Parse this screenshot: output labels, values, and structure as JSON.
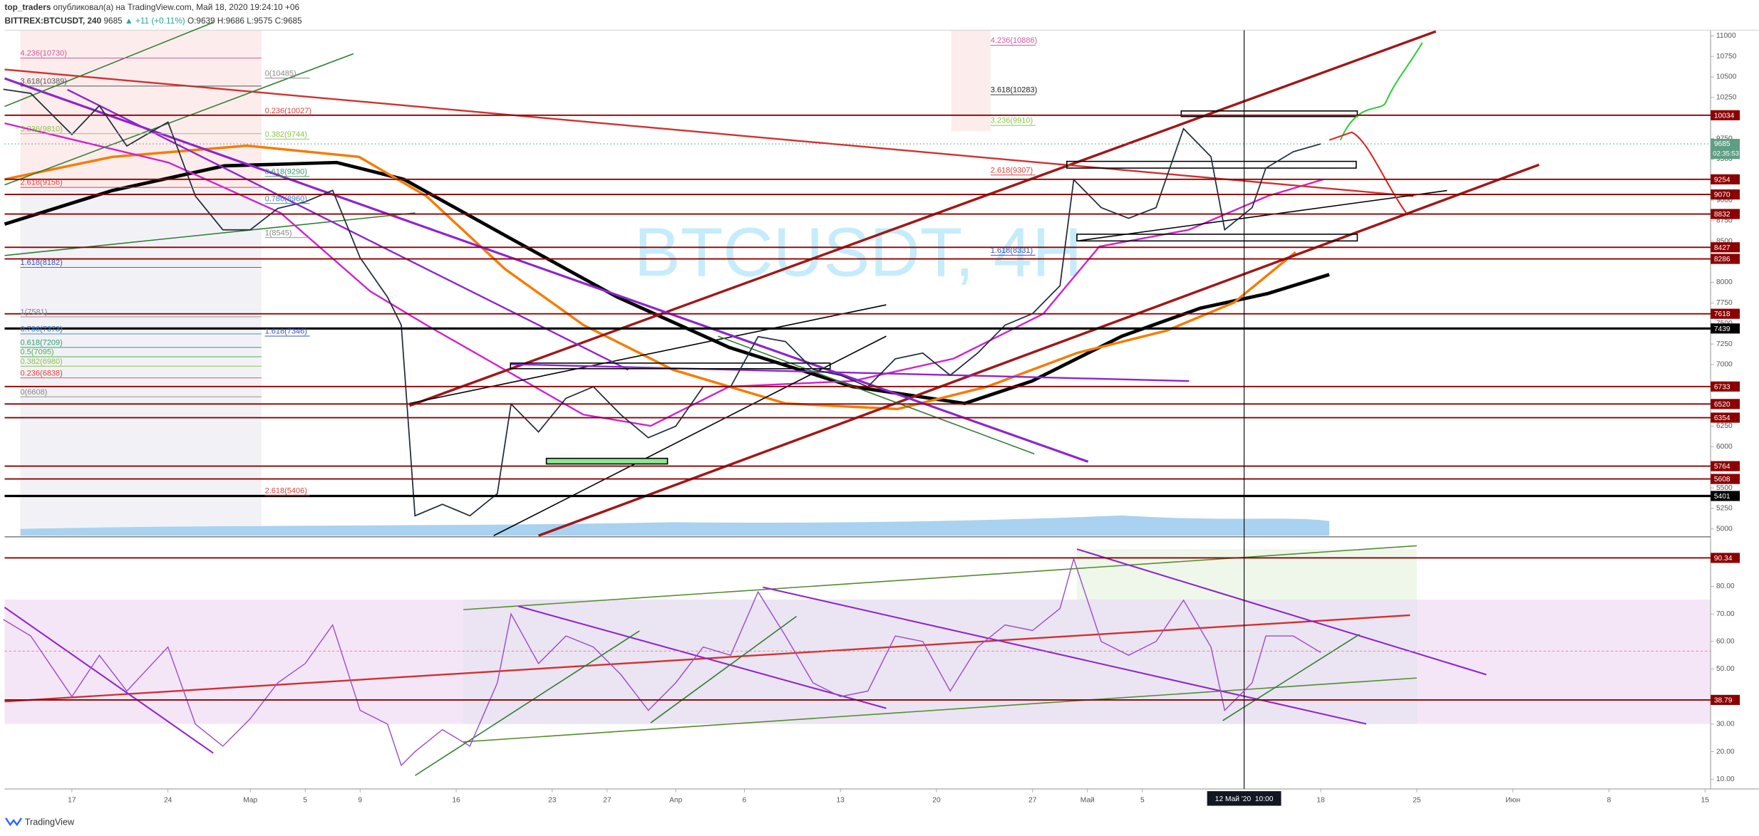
{
  "header": {
    "author": "top_traders",
    "published": " опубликовал(а) на TradingView.com, Май 18, 2020 19:24:10 +06",
    "symbol": "BITTREX:BTCUSDT, 240",
    "price": "9685",
    "change": "▲ +11 (+0.11%)",
    "open": "O:9639",
    "high": "H:9686",
    "low": "L:9575",
    "close": "C:9685"
  },
  "footer": "TradingView",
  "chart_data": [
    {
      "type": "line",
      "watermark": "BTCUSDT, 4H",
      "color": "#1f2d3a",
      "x": [
        "2020-02-12",
        "2020-02-14",
        "2020-02-17",
        "2020-02-19",
        "2020-02-21",
        "2020-02-24",
        "2020-02-26",
        "2020-02-28",
        "2020-03-01",
        "2020-03-03",
        "2020-03-05",
        "2020-03-07",
        "2020-03-09",
        "2020-03-11",
        "2020-03-12",
        "2020-03-13",
        "2020-03-15",
        "2020-03-17",
        "2020-03-19",
        "2020-03-20",
        "2020-03-22",
        "2020-03-24",
        "2020-03-26",
        "2020-03-28",
        "2020-03-30",
        "2020-04-01",
        "2020-04-03",
        "2020-04-05",
        "2020-04-07",
        "2020-04-09",
        "2020-04-11",
        "2020-04-13",
        "2020-04-15",
        "2020-04-17",
        "2020-04-19",
        "2020-04-21",
        "2020-04-23",
        "2020-04-25",
        "2020-04-27",
        "2020-04-29",
        "2020-04-30",
        "2020-05-02",
        "2020-05-04",
        "2020-05-06",
        "2020-05-08",
        "2020-05-10",
        "2020-05-11",
        "2020-05-13",
        "2020-05-14",
        "2020-05-16",
        "2020-05-18"
      ],
      "values": [
        10350,
        10300,
        9800,
        10150,
        9660,
        9950,
        9050,
        8640,
        8640,
        8900,
        8980,
        9120,
        8300,
        7820,
        7480,
        5160,
        5300,
        5160,
        5430,
        6520,
        6180,
        6590,
        6730,
        6390,
        6110,
        6250,
        6730,
        6730,
        7340,
        7280,
        6940,
        6870,
        6730,
        7070,
        7140,
        6870,
        7140,
        7480,
        7620,
        7960,
        9250,
        8910,
        8780,
        8910,
        9870,
        9530,
        8640,
        8910,
        9390,
        9590,
        9685
      ],
      "xlim": [
        "2020-02-12",
        "2020-06-15"
      ],
      "ylim": [
        4918,
        11068
      ],
      "yticks": [
        5000,
        5250,
        5500,
        5750,
        6000,
        6250,
        6500,
        6750,
        7000,
        7250,
        7500,
        7750,
        8000,
        8250,
        8500,
        8750,
        9000,
        9250,
        9500,
        9750,
        10000,
        10250,
        10500,
        10750,
        11000
      ],
      "levels": [
        10034,
        9254,
        9070,
        8832,
        8427,
        8286,
        7618,
        7439,
        6733,
        6520,
        6354,
        5764,
        5608,
        5401
      ],
      "level_colors": [
        "#8b0000",
        "#8b0000",
        "#8b0000",
        "#8b0000",
        "#8b0000",
        "#8b0000",
        "#8b0000",
        "#000000",
        "#8b0000",
        "#8b0000",
        "#8b0000",
        "#8b0000",
        "#8b0000",
        "#000000"
      ],
      "last": 9685,
      "countdown": "02:35:53",
      "last_color": "#5f9e84",
      "crosshair": {
        "value": "2020-05-12T10:00",
        "label": "12 Май '20  10:00"
      },
      "annotations": [
        {
          "text": "4.236(10730)",
          "value": 10730,
          "color": "#d05aa0"
        },
        {
          "text": "3.618(10389)",
          "value": 10389,
          "color": "#555555"
        },
        {
          "text": "3.236(9810)",
          "value": 9810,
          "color": "#8bc34a"
        },
        {
          "text": "2.618(9156)",
          "value": 9156,
          "color": "#e04040"
        },
        {
          "text": "1.618(8182)",
          "value": 8182,
          "color": "#3f51b5"
        },
        {
          "text": "1(7581)",
          "value": 7581,
          "color": "#888888"
        },
        {
          "text": "0.786(7373)",
          "value": 7373,
          "color": "#3f7fbf"
        },
        {
          "text": "0.618(7209)",
          "value": 7209,
          "color": "#2e9e6e"
        },
        {
          "text": "0.5(7095)",
          "value": 7095,
          "color": "#4caf50"
        },
        {
          "text": "0.382(6980)",
          "value": 6980,
          "color": "#8bc34a"
        },
        {
          "text": "0.236(6838)",
          "value": 6838,
          "color": "#e04040"
        },
        {
          "text": "0(6608)",
          "value": 6608,
          "color": "#888888"
        },
        {
          "text": "0(10485)",
          "value": 10485,
          "color": "#888888"
        },
        {
          "text": "0.236(10027)",
          "value": 10027,
          "color": "#e04040"
        },
        {
          "text": "0.382(9744)",
          "value": 9744,
          "color": "#8bc34a"
        },
        {
          "text": "0.618(9290)",
          "value": 9290,
          "color": "#2e9e6e"
        },
        {
          "text": "0.786(8960)",
          "value": 8960,
          "color": "#3f7fbf"
        },
        {
          "text": "1(8545)",
          "value": 8545,
          "color": "#888888"
        },
        {
          "text": "1.618(7346)",
          "value": 7346,
          "color": "#3f51b5"
        },
        {
          "text": "2.618(5406)",
          "value": 5406,
          "color": "#e04040"
        },
        {
          "text": "4.236(10886)",
          "value": 10886,
          "color": "#d05aa0"
        },
        {
          "text": "3.618(10283)",
          "value": 10283,
          "color": "#222222"
        },
        {
          "text": "3.236(9910)",
          "value": 9910,
          "color": "#8bc34a"
        },
        {
          "text": "2.618(9307)",
          "value": 9307,
          "color": "#e04040"
        },
        {
          "text": "1.618(8331)",
          "value": 8331,
          "color": "#3f51b5"
        }
      ]
    },
    {
      "type": "line",
      "color": "#9c4dcc",
      "x": [
        "2020-02-12",
        "2020-02-14",
        "2020-02-17",
        "2020-02-19",
        "2020-02-21",
        "2020-02-24",
        "2020-02-26",
        "2020-02-28",
        "2020-03-01",
        "2020-03-03",
        "2020-03-05",
        "2020-03-07",
        "2020-03-09",
        "2020-03-11",
        "2020-03-12",
        "2020-03-13",
        "2020-03-15",
        "2020-03-17",
        "2020-03-19",
        "2020-03-20",
        "2020-03-22",
        "2020-03-24",
        "2020-03-26",
        "2020-03-28",
        "2020-03-30",
        "2020-04-01",
        "2020-04-03",
        "2020-04-05",
        "2020-04-07",
        "2020-04-09",
        "2020-04-11",
        "2020-04-13",
        "2020-04-15",
        "2020-04-17",
        "2020-04-19",
        "2020-04-21",
        "2020-04-23",
        "2020-04-25",
        "2020-04-27",
        "2020-04-29",
        "2020-04-30",
        "2020-05-02",
        "2020-05-04",
        "2020-05-06",
        "2020-05-08",
        "2020-05-10",
        "2020-05-11",
        "2020-05-13",
        "2020-05-14",
        "2020-05-16",
        "2020-05-18"
      ],
      "values": [
        68,
        62,
        40,
        55,
        42,
        58,
        30,
        22,
        32,
        45,
        52,
        66,
        35,
        30,
        15,
        20,
        28,
        22,
        45,
        70,
        52,
        62,
        58,
        48,
        35,
        45,
        58,
        55,
        78,
        62,
        45,
        40,
        42,
        62,
        60,
        42,
        58,
        66,
        64,
        72,
        90,
        60,
        55,
        60,
        75,
        58,
        35,
        45,
        62,
        62,
        56
      ],
      "xlim": [
        "2020-02-12",
        "2020-06-15"
      ],
      "ylim": [
        8.1,
        97.6
      ],
      "yticks": [
        {
          "value": 10,
          "label": "10.00"
        },
        {
          "value": 20,
          "label": "20.00"
        },
        {
          "value": 30,
          "label": "30.00"
        },
        {
          "value": 50,
          "label": "50.00"
        },
        {
          "value": 60,
          "label": "60.00"
        },
        {
          "value": 70,
          "label": "70.00"
        },
        {
          "value": 80,
          "label": "80.00"
        }
      ],
      "levels": [
        90.34,
        38.79
      ],
      "level_colors": [
        "#8b0000",
        "#8b0000"
      ],
      "xticks": [
        {
          "value": "2020-02-17",
          "label": "17"
        },
        {
          "value": "2020-02-24",
          "label": "24"
        },
        {
          "value": "2020-03-01",
          "label": "Мар"
        },
        {
          "value": "2020-03-05",
          "label": "5"
        },
        {
          "value": "2020-03-09",
          "label": "9"
        },
        {
          "value": "2020-03-16",
          "label": "16"
        },
        {
          "value": "2020-03-23",
          "label": "23"
        },
        {
          "value": "2020-03-27",
          "label": "27"
        },
        {
          "value": "2020-04-01",
          "label": "Апр"
        },
        {
          "value": "2020-04-06",
          "label": "6"
        },
        {
          "value": "2020-04-13",
          "label": "13"
        },
        {
          "value": "2020-04-20",
          "label": "20"
        },
        {
          "value": "2020-04-27",
          "label": "27"
        },
        {
          "value": "2020-05-01",
          "label": "Май"
        },
        {
          "value": "2020-05-05",
          "label": "5"
        },
        {
          "value": "2020-05-18",
          "label": "18"
        },
        {
          "value": "2020-05-25",
          "label": "25"
        },
        {
          "value": "2020-06-01",
          "label": "Июн"
        },
        {
          "value": "2020-06-08",
          "label": "8"
        },
        {
          "value": "2020-06-15",
          "label": "15"
        }
      ]
    }
  ]
}
